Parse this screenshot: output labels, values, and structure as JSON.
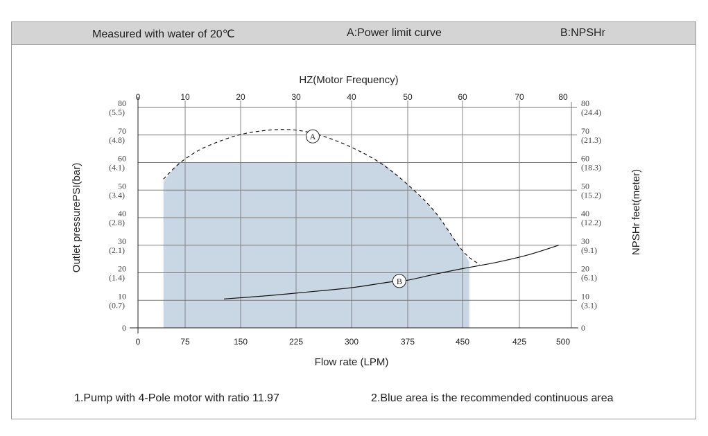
{
  "header": {
    "condition": "Measured with water of 20℃",
    "curve_a": "A:Power limit curve",
    "curve_b": "B:NPSHr"
  },
  "notes": {
    "note1": "1.Pump with 4-Pole motor with ratio 11.97",
    "note2": "2.Blue area is the recommended continuous area"
  },
  "colors": {
    "header_bg": "#d4d4d4",
    "recommended_area": "#c9d6e3",
    "grid": "#7a7a7a",
    "curve": "#111111"
  },
  "chart_data": {
    "type": "line",
    "top_axis": {
      "label": "HZ(Motor Frequency)",
      "ticks": [
        "0",
        "10",
        "20",
        "30",
        "40",
        "50",
        "60",
        "70",
        "80"
      ]
    },
    "bottom_axis": {
      "label": "Flow rate (LPM)",
      "ticks": [
        "0",
        "75",
        "150",
        "225",
        "300",
        "375",
        "450",
        "425",
        "500"
      ]
    },
    "left_axis": {
      "label": "Outlet pressurePSI(bar)",
      "ticks": [
        {
          "v": 0,
          "psi": "0",
          "bar": ""
        },
        {
          "v": 10,
          "psi": "10",
          "bar": "(0.7)"
        },
        {
          "v": 20,
          "psi": "20",
          "bar": "(1.4)"
        },
        {
          "v": 30,
          "psi": "30",
          "bar": "(2.1)"
        },
        {
          "v": 40,
          "psi": "40",
          "bar": "(2.8)"
        },
        {
          "v": 50,
          "psi": "50",
          "bar": "(3.4)"
        },
        {
          "v": 60,
          "psi": "60",
          "bar": "(4.1)"
        },
        {
          "v": 70,
          "psi": "70",
          "bar": "(4.8)"
        },
        {
          "v": 80,
          "psi": "80",
          "bar": "(5.5)"
        }
      ]
    },
    "right_axis": {
      "label": "NPSHr feet(meter)",
      "ticks": [
        {
          "v": 0,
          "ft": "0",
          "m": ""
        },
        {
          "v": 10,
          "ft": "10",
          "m": "(3.1)"
        },
        {
          "v": 20,
          "ft": "20",
          "m": "(6.1)"
        },
        {
          "v": 30,
          "ft": "30",
          "m": "(9.1)"
        },
        {
          "v": 40,
          "ft": "40",
          "m": "(12.2)"
        },
        {
          "v": 50,
          "ft": "50",
          "m": "(15.2)"
        },
        {
          "v": 60,
          "ft": "60",
          "m": "(18.3)"
        },
        {
          "v": 70,
          "ft": "70",
          "m": "(21.3)"
        },
        {
          "v": 80,
          "ft": "80",
          "m": "(24.4)"
        }
      ]
    },
    "ylim": [
      0,
      80
    ],
    "hz_lim": [
      0,
      80
    ],
    "grid": true,
    "recommended_area": [
      {
        "hz": 5.4,
        "y": 0
      },
      {
        "hz": 5.4,
        "y": 53
      },
      {
        "hz": 8.6,
        "y": 60
      },
      {
        "hz": 45.5,
        "y": 60
      },
      {
        "hz": 50,
        "y": 52
      },
      {
        "hz": 55,
        "y": 42
      },
      {
        "hz": 60,
        "y": 28
      },
      {
        "hz": 61.2,
        "y": 24
      },
      {
        "hz": 61.2,
        "y": 0
      }
    ],
    "series": [
      {
        "label": "A",
        "style": "dashed",
        "points": [
          {
            "hz": 5.4,
            "y": 54
          },
          {
            "hz": 9,
            "y": 60
          },
          {
            "hz": 13,
            "y": 65
          },
          {
            "hz": 18,
            "y": 69
          },
          {
            "hz": 22,
            "y": 71
          },
          {
            "hz": 27,
            "y": 72
          },
          {
            "hz": 31,
            "y": 71.5
          },
          {
            "hz": 35,
            "y": 69.5
          },
          {
            "hz": 40,
            "y": 65.5
          },
          {
            "hz": 45,
            "y": 60
          },
          {
            "hz": 50,
            "y": 52
          },
          {
            "hz": 55,
            "y": 42
          },
          {
            "hz": 60,
            "y": 28
          },
          {
            "hz": 63,
            "y": 23
          }
        ]
      },
      {
        "label": "B",
        "style": "solid",
        "points": [
          {
            "hz": 17,
            "y": 10.5
          },
          {
            "hz": 25,
            "y": 11.7
          },
          {
            "hz": 32,
            "y": 13
          },
          {
            "hz": 40,
            "y": 14.6
          },
          {
            "hz": 47,
            "y": 16.7
          },
          {
            "hz": 50,
            "y": 17.3
          },
          {
            "hz": 55,
            "y": 19.5
          },
          {
            "hz": 60,
            "y": 21.5
          },
          {
            "hz": 66,
            "y": 23.8
          },
          {
            "hz": 72,
            "y": 26.5
          },
          {
            "hz": 79,
            "y": 30
          }
        ]
      }
    ]
  }
}
